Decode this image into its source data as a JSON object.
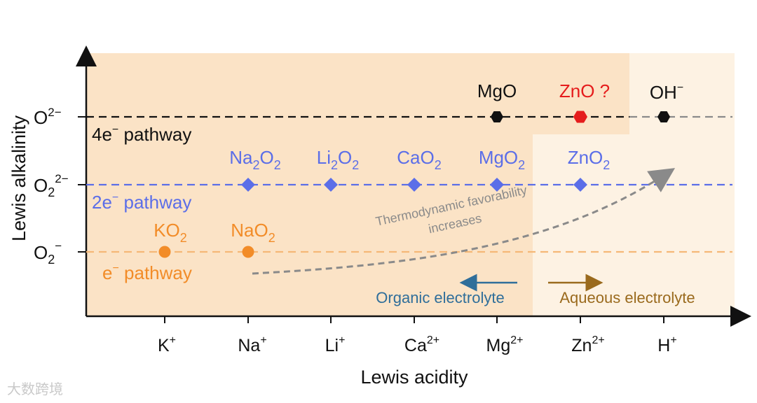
{
  "axes": {
    "y_label": "Lewis alkalinity",
    "x_label": "Lewis acidity",
    "y_ticks": [
      {
        "id": "o2-2minus",
        "base": "O",
        "sup": "2−"
      },
      {
        "id": "o2-2minus-peroxide",
        "base": "O",
        "sub": "2",
        "sup": "2−"
      },
      {
        "id": "o2-minus",
        "base": "O",
        "sub": "2",
        "sup": "−"
      }
    ],
    "x_ticks": [
      {
        "id": "k",
        "base": "K",
        "sup": "+"
      },
      {
        "id": "na",
        "base": "Na",
        "sup": "+"
      },
      {
        "id": "li",
        "base": "Li",
        "sup": "+"
      },
      {
        "id": "ca",
        "base": "Ca",
        "sup": "2+"
      },
      {
        "id": "mg",
        "base": "Mg",
        "sup": "2+"
      },
      {
        "id": "zn",
        "base": "Zn",
        "sup": "2+"
      },
      {
        "id": "h",
        "base": "H",
        "sup": "+"
      }
    ]
  },
  "pathways": {
    "four_e": {
      "prefix": "4e",
      "sup": "−",
      "suffix": " pathway",
      "color": "#111111"
    },
    "two_e": {
      "prefix": "2e",
      "sup": "−",
      "suffix": " pathway",
      "color": "#5b6ee8"
    },
    "one_e": {
      "prefix": "e",
      "sup": "−",
      "suffix": " pathway",
      "color": "#f28c28"
    }
  },
  "species": {
    "row_4e": [
      {
        "cation": "Mg",
        "label": "MgO",
        "color": "#111111"
      },
      {
        "cation": "Zn",
        "label": "ZnO ?",
        "color": "#e51c1c"
      },
      {
        "cation": "H",
        "label": "OH",
        "sup": "−",
        "color": "#111111"
      }
    ],
    "row_2e": [
      {
        "cation": "Na",
        "label": "Na",
        "sub1": "2",
        "mid": "O",
        "sub2": "2"
      },
      {
        "cation": "Li",
        "label": "Li",
        "sub1": "2",
        "mid": "O",
        "sub2": "2"
      },
      {
        "cation": "Ca",
        "label": "CaO",
        "sub2": "2"
      },
      {
        "cation": "Mg",
        "label": "MgO",
        "sub2": "2"
      },
      {
        "cation": "Zn",
        "label": "ZnO",
        "sub2": "2"
      }
    ],
    "row_1e": [
      {
        "cation": "K",
        "label": "KO",
        "sub2": "2"
      },
      {
        "cation": "Na",
        "label": "NaO",
        "sub2": "2"
      }
    ]
  },
  "annotations": {
    "trend_line1": "Thermodynamic favorability",
    "trend_line2": "increases",
    "organic": "Organic electrolyte",
    "aqueous": "Aqueous electrolyte"
  },
  "colors": {
    "bg_region": "#fbe3c6",
    "bg_light": "#fdf2e3",
    "marker_4e": "#111111",
    "marker_zno": "#e51c1c",
    "organic_arrow": "#2f6e9a",
    "aqueous_arrow": "#9a6a1d",
    "trend_arrow": "#8a8a8a"
  },
  "watermark": "大数跨境"
}
